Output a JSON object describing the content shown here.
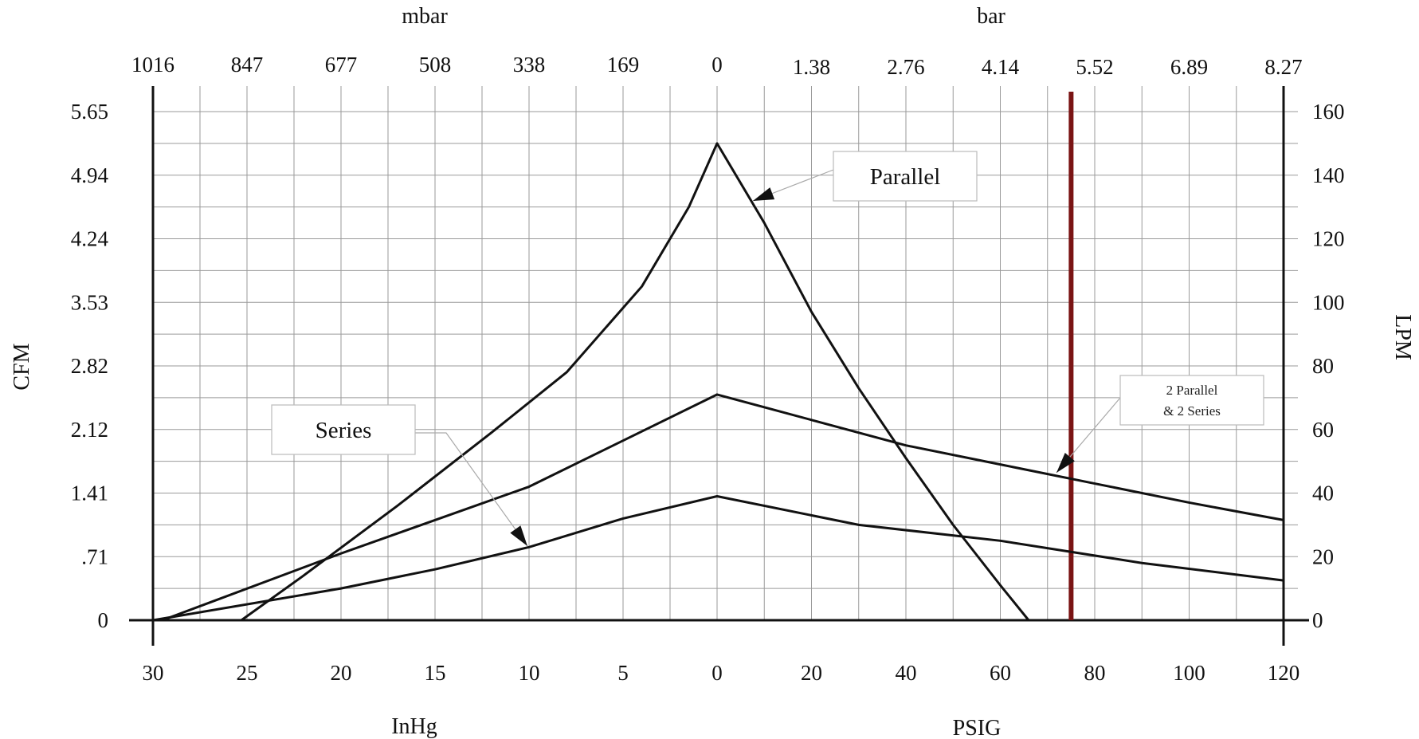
{
  "chart_data": {
    "type": "line",
    "title": "",
    "x_bottom_left_label": "InHg",
    "x_bottom_right_label": "PSIG",
    "x_top_left_label": "mbar",
    "x_top_right_label": "bar",
    "y_left_label": "CFM",
    "y_right_label": "LPM",
    "vacuum_ticks_inhg": [
      "30",
      "25",
      "20",
      "15",
      "10",
      "5",
      "0"
    ],
    "pressure_ticks_psig": [
      "20",
      "40",
      "60",
      "80",
      "100",
      "120"
    ],
    "mbar_ticks": [
      "1016",
      "847",
      "677",
      "508",
      "338",
      "169",
      "0"
    ],
    "bar_ticks": [
      "1.38",
      "2.76",
      "4.14",
      "5.52",
      "6.89",
      "8.27"
    ],
    "y_left_ticks": [
      "0",
      ".71",
      "1.41",
      "2.12",
      "2.82",
      "3.53",
      "4.24",
      "4.94",
      "5.65"
    ],
    "y_right_ticks": [
      "0",
      "20",
      "40",
      "60",
      "80",
      "100",
      "120",
      "140",
      "160"
    ],
    "x_range_vacuum_inhg": [
      30,
      0
    ],
    "x_range_pressure_psig": [
      0,
      120
    ],
    "ylim_lpm": [
      0,
      160
    ],
    "grid": true,
    "series": [
      {
        "name": "Parallel",
        "points": [
          {
            "side": "vac",
            "x": 25.3,
            "y": 0
          },
          {
            "side": "vac",
            "x": 22,
            "y": 14
          },
          {
            "side": "vac",
            "x": 17,
            "y": 36
          },
          {
            "side": "vac",
            "x": 12,
            "y": 59
          },
          {
            "side": "vac",
            "x": 8,
            "y": 78
          },
          {
            "side": "vac",
            "x": 4,
            "y": 105
          },
          {
            "side": "vac",
            "x": 1.5,
            "y": 130
          },
          {
            "side": "vac",
            "x": 0,
            "y": 150
          },
          {
            "side": "psig",
            "x": 10,
            "y": 125
          },
          {
            "side": "psig",
            "x": 20,
            "y": 97
          },
          {
            "side": "psig",
            "x": 30,
            "y": 73
          },
          {
            "side": "psig",
            "x": 40,
            "y": 51
          },
          {
            "side": "psig",
            "x": 50,
            "y": 30
          },
          {
            "side": "psig",
            "x": 60,
            "y": 11
          },
          {
            "side": "psig",
            "x": 66,
            "y": 0
          }
        ]
      },
      {
        "name": "2 Parallel & 2 Series",
        "points": [
          {
            "side": "vac",
            "x": 29.5,
            "y": 0
          },
          {
            "side": "vac",
            "x": 20,
            "y": 21
          },
          {
            "side": "vac",
            "x": 10,
            "y": 42
          },
          {
            "side": "vac",
            "x": 0,
            "y": 71
          },
          {
            "side": "psig",
            "x": 20,
            "y": 63
          },
          {
            "side": "psig",
            "x": 40,
            "y": 55
          },
          {
            "side": "psig",
            "x": 60,
            "y": 49
          },
          {
            "side": "psig",
            "x": 80,
            "y": 43
          },
          {
            "side": "psig",
            "x": 100,
            "y": 37
          },
          {
            "side": "psig",
            "x": 120,
            "y": 31.5
          }
        ]
      },
      {
        "name": "Series",
        "points": [
          {
            "side": "vac",
            "x": 30,
            "y": 0
          },
          {
            "side": "vac",
            "x": 20,
            "y": 10
          },
          {
            "side": "vac",
            "x": 15,
            "y": 16
          },
          {
            "side": "vac",
            "x": 10,
            "y": 23
          },
          {
            "side": "vac",
            "x": 5,
            "y": 32
          },
          {
            "side": "vac",
            "x": 0,
            "y": 39
          },
          {
            "side": "psig",
            "x": 30,
            "y": 30
          },
          {
            "side": "psig",
            "x": 60,
            "y": 25
          },
          {
            "side": "psig",
            "x": 90,
            "y": 18
          },
          {
            "side": "psig",
            "x": 120,
            "y": 12.5
          }
        ]
      }
    ],
    "reference_line": {
      "side": "psig",
      "x": 75,
      "color": "#7a1414"
    },
    "callouts": [
      {
        "lines": [
          "Parallel"
        ],
        "series": "Parallel",
        "size": "large"
      },
      {
        "lines": [
          "Series"
        ],
        "series": "Series",
        "size": "large"
      },
      {
        "lines": [
          "2 Parallel",
          "& 2 Series"
        ],
        "series": "2 Parallel & 2 Series",
        "size": "small"
      }
    ]
  }
}
